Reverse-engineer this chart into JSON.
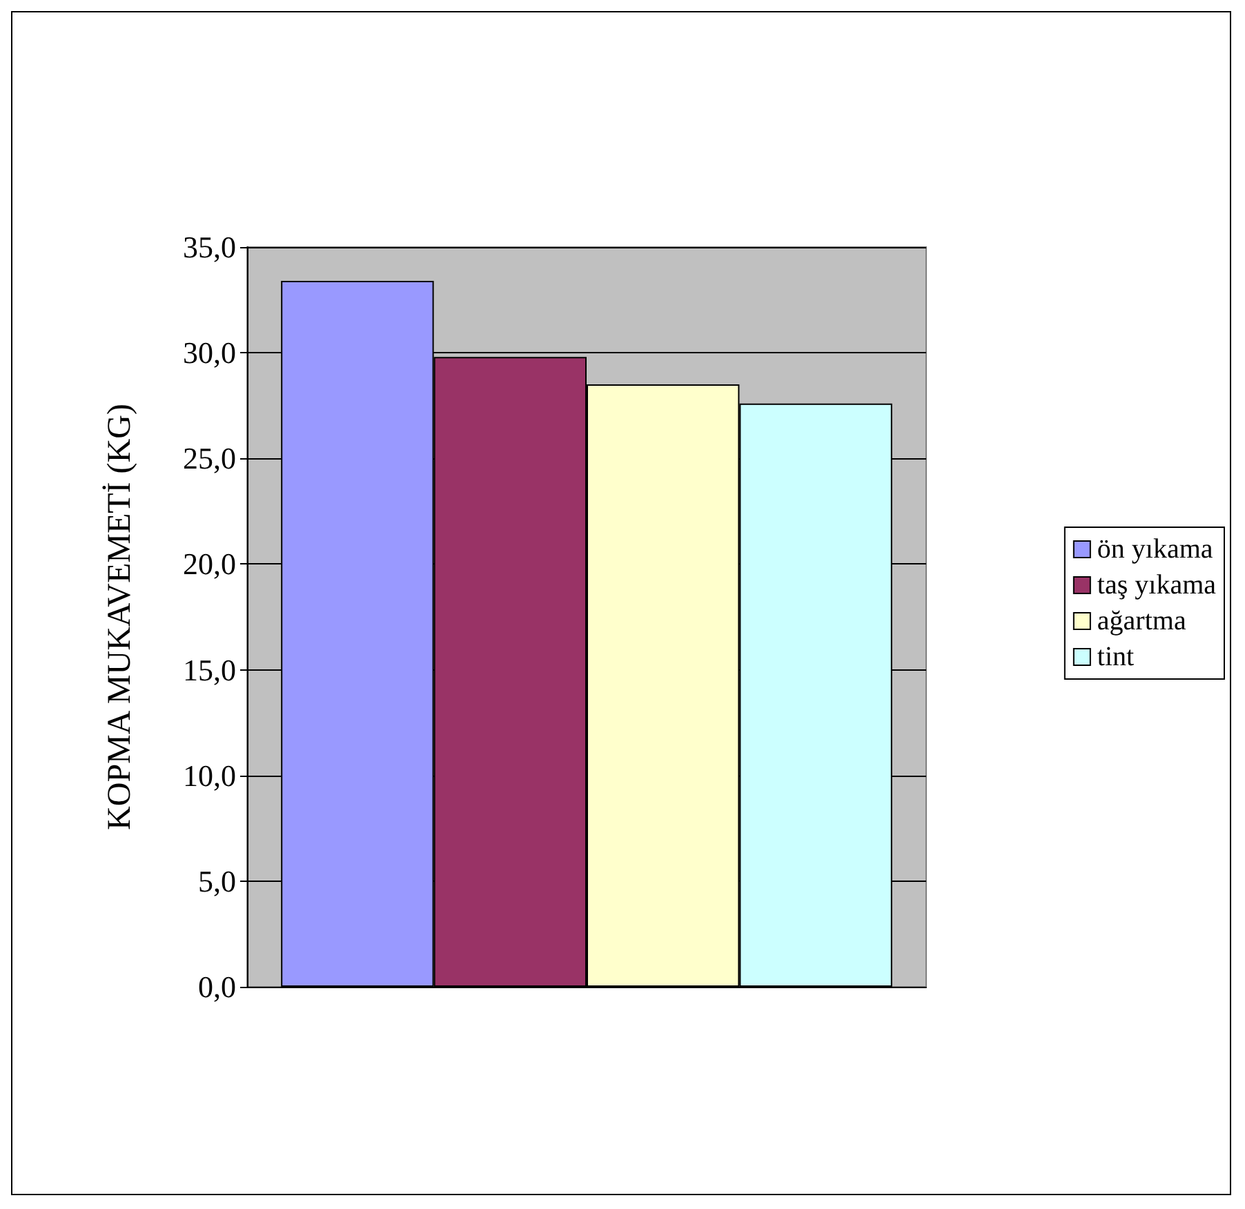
{
  "chart_data": {
    "type": "bar",
    "ylabel": "KOPMA MUKAVEMETİ (KG)",
    "categories": [
      null
    ],
    "series": [
      {
        "name": "ön yıkama",
        "color": "#9999ff",
        "values": [
          33.4
        ]
      },
      {
        "name": "taş yıkama",
        "color": "#993366",
        "values": [
          29.8
        ]
      },
      {
        "name": "ağartma",
        "color": "#ffffcc",
        "values": [
          28.5
        ]
      },
      {
        "name": "tint",
        "color": "#ccffff",
        "values": [
          27.6
        ]
      }
    ],
    "ylim": [
      0,
      35
    ],
    "yticks": [
      {
        "value": 0,
        "label": "0,0"
      },
      {
        "value": 5,
        "label": "5,0"
      },
      {
        "value": 10,
        "label": "10,0"
      },
      {
        "value": 15,
        "label": "15,0"
      },
      {
        "value": 20,
        "label": "20,0"
      },
      {
        "value": 25,
        "label": "25,0"
      },
      {
        "value": 30,
        "label": "30,0"
      },
      {
        "value": 35,
        "label": "35,0"
      }
    ],
    "grid": "y",
    "legend": "right"
  }
}
